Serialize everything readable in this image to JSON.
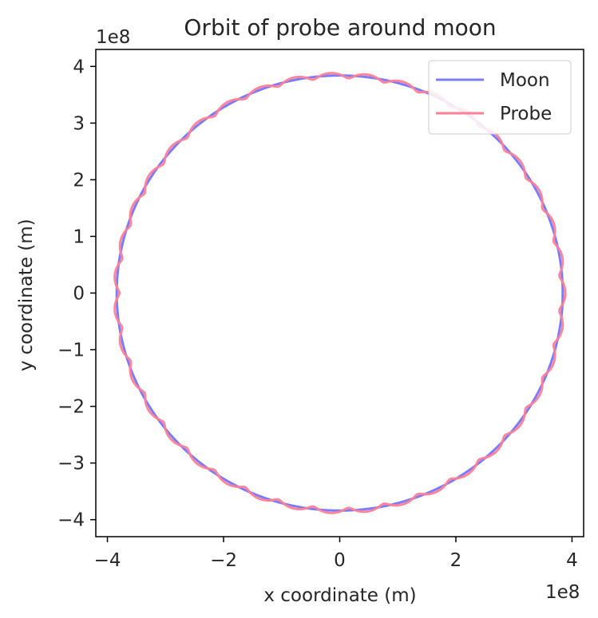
{
  "chart_data": {
    "type": "line",
    "title": "Orbit of probe around moon",
    "xlabel": "x coordinate (m)",
    "ylabel": "y coordinate (m)",
    "x_offset_label": "1e8",
    "y_offset_label": "1e8",
    "xlim": [
      -4.2,
      4.2
    ],
    "ylim": [
      -4.3,
      4.3
    ],
    "x_ticks": [
      -4,
      -2,
      0,
      2,
      4
    ],
    "x_tick_labels": [
      "−4",
      "−2",
      "0",
      "2",
      "4"
    ],
    "y_ticks": [
      4,
      3,
      2,
      1,
      0,
      -1,
      -2,
      -3,
      -4
    ],
    "y_tick_labels": [
      "4",
      "3",
      "2",
      "1",
      "0",
      "−1",
      "−2",
      "−3",
      "−4"
    ],
    "grid": false,
    "legend_position": "upper right",
    "series": [
      {
        "name": "Moon",
        "color": "#7b7bff",
        "shape": "circle",
        "center": [
          0,
          0
        ],
        "radius": 3.84,
        "unit_scale": "1e8"
      },
      {
        "name": "Probe",
        "color": "#ff8096",
        "shape": "epicycle",
        "center": [
          0,
          0
        ],
        "radius": 3.84,
        "loop_count": 40,
        "loop_radius": 0.045,
        "unit_scale": "1e8"
      }
    ]
  }
}
